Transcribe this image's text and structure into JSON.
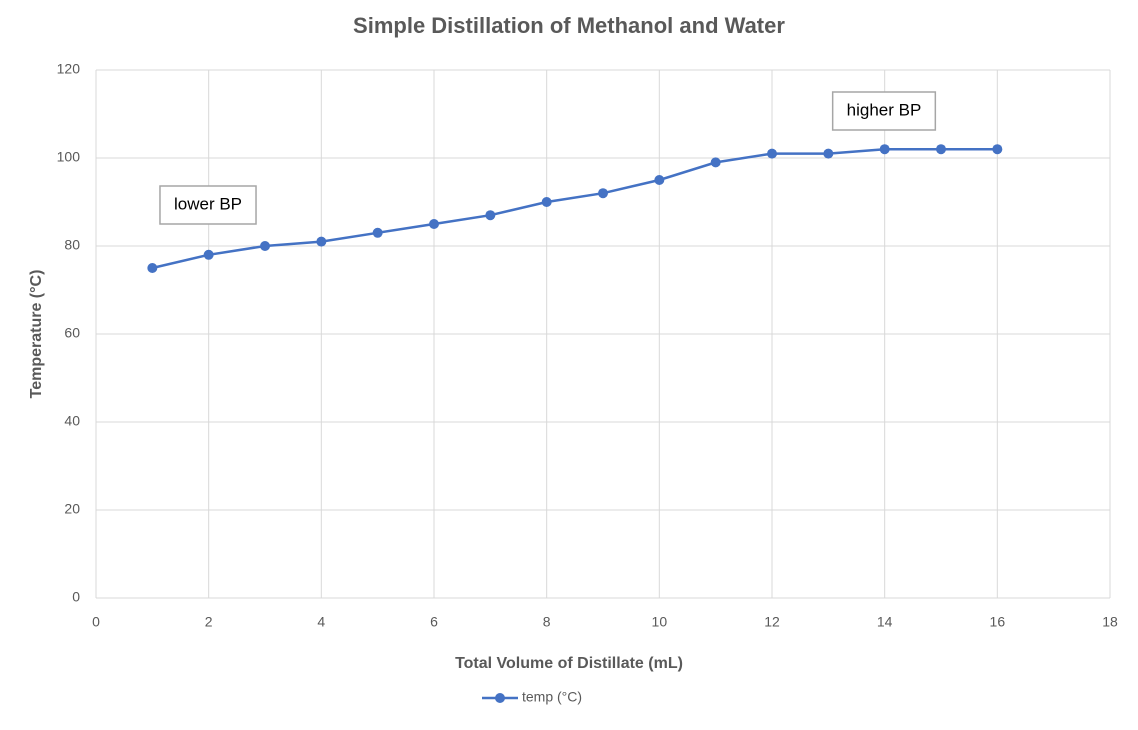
{
  "chart_data": {
    "type": "line",
    "title": "Simple Distillation of Methanol and Water",
    "x_label": "Total Volume of Distillate (mL)",
    "y_label": "Temperature (°C)",
    "x": [
      1,
      2,
      3,
      4,
      5,
      6,
      7,
      8,
      9,
      10,
      11,
      12,
      13,
      14,
      15,
      16
    ],
    "series": [
      {
        "name": "temp (°C)",
        "color": "#4472c4",
        "values": [
          75,
          78,
          80,
          81,
          83,
          85,
          87,
          90,
          92,
          95,
          99,
          101,
          101,
          102,
          102,
          102
        ]
      }
    ],
    "xlim": [
      0,
      18
    ],
    "xticks": [
      0,
      2,
      4,
      6,
      8,
      10,
      12,
      14,
      16,
      18
    ],
    "ylim": [
      0,
      120
    ],
    "yticks": [
      0,
      20,
      40,
      60,
      80,
      100,
      120
    ],
    "grid": true,
    "legend": "bottom",
    "annotations": [
      "lower BP",
      "higher BP"
    ]
  }
}
